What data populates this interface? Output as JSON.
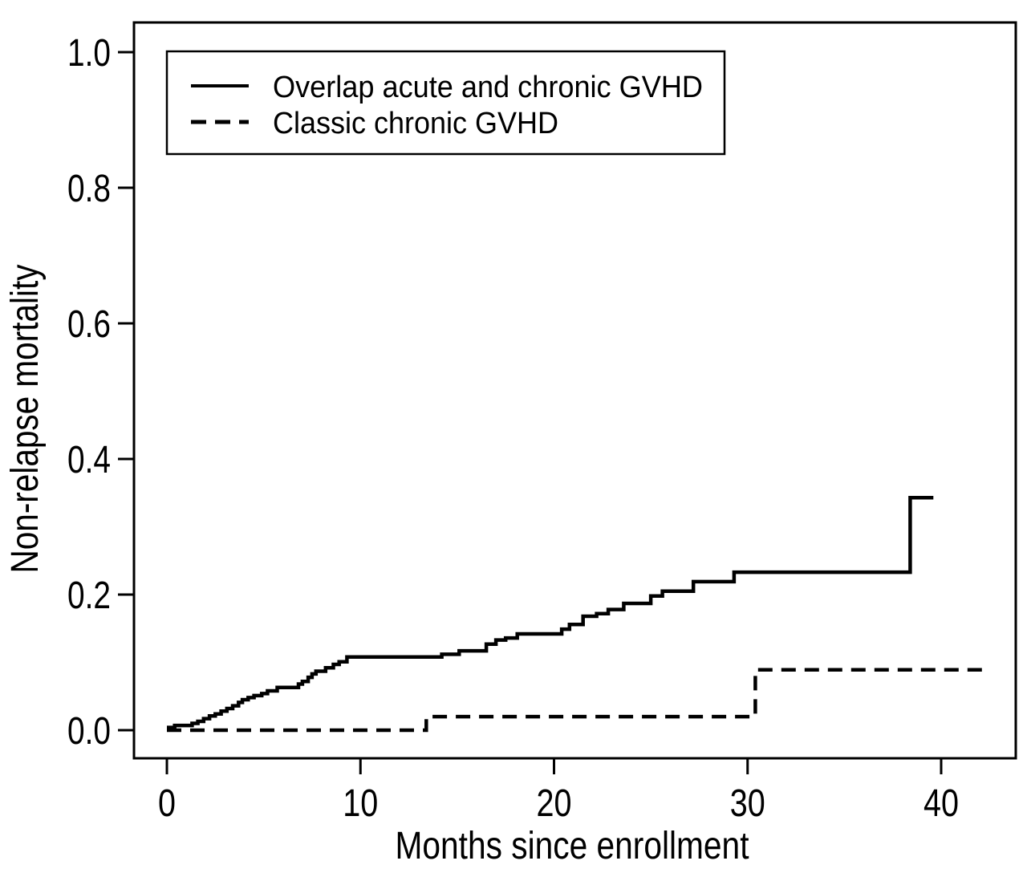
{
  "chart_data": {
    "type": "line",
    "subtype": "step-function-cumulative-incidence",
    "title": "",
    "xlabel": "Months since enrollment",
    "ylabel": "Non-relapse mortality",
    "xlim": [
      0,
      43.8
    ],
    "ylim": [
      0.0,
      1.0
    ],
    "xticks": [
      "0",
      "10",
      "20",
      "30",
      "40"
    ],
    "xtick_values": [
      0,
      10,
      20,
      30,
      40
    ],
    "yticks": [
      "0.0",
      "0.2",
      "0.4",
      "0.6",
      "0.8",
      "1.0"
    ],
    "ytick_values": [
      0.0,
      0.2,
      0.4,
      0.6,
      0.8,
      1.0
    ],
    "grid": false,
    "background_color": "#ffffff",
    "line_color": "#000000",
    "legend_position": "top-left",
    "legend": [
      {
        "label": "Overlap acute and chronic GVHD",
        "style": "solid"
      },
      {
        "label": "Classic chronic GVHD",
        "style": "dashed"
      }
    ],
    "series": [
      {
        "name": "Overlap acute and chronic GVHD",
        "style": "solid",
        "step_points": [
          [
            0,
            0.004
          ],
          [
            0.4,
            0.007
          ],
          [
            1.3,
            0.01
          ],
          [
            1.6,
            0.013
          ],
          [
            1.9,
            0.017
          ],
          [
            2.2,
            0.021
          ],
          [
            2.5,
            0.024
          ],
          [
            2.8,
            0.028
          ],
          [
            3.1,
            0.032
          ],
          [
            3.4,
            0.036
          ],
          [
            3.7,
            0.041
          ],
          [
            3.9,
            0.045
          ],
          [
            4.2,
            0.048
          ],
          [
            4.5,
            0.051
          ],
          [
            4.9,
            0.054
          ],
          [
            5.2,
            0.058
          ],
          [
            5.7,
            0.063
          ],
          [
            6.8,
            0.068
          ],
          [
            7.0,
            0.072
          ],
          [
            7.3,
            0.078
          ],
          [
            7.5,
            0.083
          ],
          [
            7.7,
            0.087
          ],
          [
            8.2,
            0.092
          ],
          [
            8.6,
            0.097
          ],
          [
            8.9,
            0.101
          ],
          [
            9.3,
            0.108
          ],
          [
            14.2,
            0.112
          ],
          [
            15.1,
            0.117
          ],
          [
            16.5,
            0.127
          ],
          [
            17.0,
            0.133
          ],
          [
            17.5,
            0.136
          ],
          [
            18.1,
            0.142
          ],
          [
            20.4,
            0.149
          ],
          [
            20.8,
            0.156
          ],
          [
            21.5,
            0.168
          ],
          [
            22.2,
            0.172
          ],
          [
            22.8,
            0.178
          ],
          [
            23.6,
            0.187
          ],
          [
            25.0,
            0.198
          ],
          [
            25.6,
            0.205
          ],
          [
            27.2,
            0.219
          ],
          [
            29.3,
            0.233
          ],
          [
            38.4,
            0.343
          ],
          [
            39.6,
            0.343
          ]
        ]
      },
      {
        "name": "Classic chronic GVHD",
        "style": "dashed",
        "step_points": [
          [
            0,
            0.0
          ],
          [
            13.4,
            0.02
          ],
          [
            30.4,
            0.089
          ],
          [
            42.2,
            0.089
          ]
        ]
      }
    ]
  }
}
